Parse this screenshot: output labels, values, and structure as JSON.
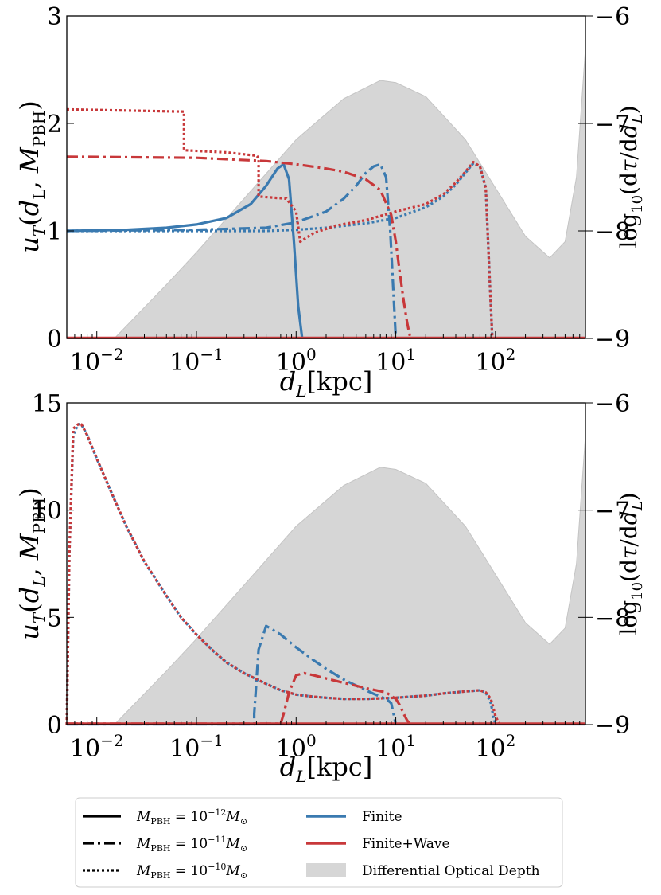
{
  "chart_data": [
    {
      "type": "line",
      "panel": "top",
      "xlabel": "d_L[kpc]",
      "ylabel": "u_T(d_L, M_PBH)",
      "ylabel_right": "log10(dτ/dd_L)",
      "x_scale": "log",
      "xlim": [
        0.005,
        800
      ],
      "ylim": [
        0,
        3
      ],
      "ylim_right": [
        -9,
        -6
      ],
      "x_ticks": [
        {
          "value": 0.01,
          "base": "10",
          "exp": "−2"
        },
        {
          "value": 0.1,
          "base": "10",
          "exp": "−1"
        },
        {
          "value": 1,
          "base": "10",
          "exp": "0"
        },
        {
          "value": 10,
          "base": "10",
          "exp": "1"
        },
        {
          "value": 100,
          "base": "10",
          "exp": "2"
        }
      ],
      "y_ticks": [
        0,
        1,
        2,
        3
      ],
      "y_ticks_right": [
        -9,
        -8,
        -7,
        -6
      ],
      "optical_depth": {
        "x": [
          0.005,
          0.015,
          0.05,
          0.1,
          0.3,
          1,
          3,
          7,
          10,
          20,
          50,
          100,
          200,
          350,
          500,
          650,
          800
        ],
        "y": [
          -9.0,
          -9.0,
          -8.5,
          -8.2,
          -7.7,
          -7.15,
          -6.77,
          -6.6,
          -6.62,
          -6.75,
          -7.15,
          -7.6,
          -8.05,
          -8.25,
          -8.1,
          -7.5,
          -6.3
        ]
      },
      "series": [
        {
          "name": "finite-1e-12",
          "color": "#3a7ab0",
          "style": "solid",
          "x": [
            0.005,
            0.02,
            0.05,
            0.1,
            0.2,
            0.35,
            0.5,
            0.65,
            0.75,
            0.85,
            0.95,
            1.05,
            1.15
          ],
          "y": [
            1.0,
            1.01,
            1.03,
            1.06,
            1.12,
            1.25,
            1.42,
            1.58,
            1.62,
            1.48,
            0.9,
            0.3,
            0
          ]
        },
        {
          "name": "finite-1e-11",
          "color": "#3a7ab0",
          "style": "dashdot",
          "x": [
            0.005,
            0.1,
            0.5,
            1,
            2,
            3,
            4,
            5,
            6,
            7,
            8,
            8.8,
            9.5,
            10
          ],
          "y": [
            1.0,
            1.01,
            1.03,
            1.08,
            1.18,
            1.3,
            1.42,
            1.54,
            1.6,
            1.62,
            1.5,
            1.0,
            0.4,
            0
          ]
        },
        {
          "name": "finite-1e-10",
          "color": "#3a7ab0",
          "style": "dotted",
          "x": [
            0.005,
            0.5,
            1,
            2,
            5,
            10,
            20,
            30,
            40,
            50,
            60,
            70,
            80,
            88,
            93
          ],
          "y": [
            1.0,
            1.0,
            1.01,
            1.03,
            1.07,
            1.12,
            1.22,
            1.32,
            1.43,
            1.54,
            1.63,
            1.6,
            1.4,
            0.5,
            0
          ]
        },
        {
          "name": "finite-wave-1e-12",
          "color": "#c8383a",
          "style": "solid",
          "x": [
            0.005,
            800
          ],
          "y": [
            0.005,
            0.005
          ]
        },
        {
          "name": "finite-wave-1e-11",
          "color": "#c8383a",
          "style": "dashdot",
          "x": [
            0.005,
            0.1,
            0.5,
            1,
            2,
            3,
            5,
            7,
            9,
            10,
            11,
            12,
            13,
            14
          ],
          "y": [
            1.69,
            1.68,
            1.65,
            1.62,
            1.58,
            1.55,
            1.48,
            1.38,
            1.15,
            0.9,
            0.6,
            0.35,
            0.15,
            0
          ]
        },
        {
          "name": "finite-wave-1e-10",
          "color": "#c8383a",
          "style": "dotted",
          "x": [
            0.005,
            0.075,
            0.075,
            0.2,
            0.4,
            0.42,
            0.42,
            0.8,
            1.0,
            1.1,
            1.5,
            2.5,
            5,
            10,
            20,
            30,
            40,
            50,
            60,
            70,
            80,
            88,
            93
          ],
          "y": [
            2.13,
            2.11,
            1.75,
            1.73,
            1.7,
            1.68,
            1.32,
            1.3,
            1.18,
            0.9,
            0.98,
            1.05,
            1.1,
            1.18,
            1.25,
            1.34,
            1.45,
            1.55,
            1.64,
            1.6,
            1.4,
            0.5,
            0
          ]
        }
      ]
    },
    {
      "type": "line",
      "panel": "bottom",
      "xlabel": "d_L[kpc]",
      "ylabel": "u_T(d_L, M_PBH)",
      "ylabel_right": "log10(dτ/dd_L)",
      "x_scale": "log",
      "xlim": [
        0.005,
        800
      ],
      "ylim": [
        0,
        15
      ],
      "ylim_right": [
        -9,
        -6
      ],
      "x_ticks": [
        {
          "value": 0.01,
          "base": "10",
          "exp": "−2"
        },
        {
          "value": 0.1,
          "base": "10",
          "exp": "−1"
        },
        {
          "value": 1,
          "base": "10",
          "exp": "0"
        },
        {
          "value": 10,
          "base": "10",
          "exp": "1"
        },
        {
          "value": 100,
          "base": "10",
          "exp": "2"
        }
      ],
      "y_ticks": [
        0,
        5,
        10,
        15
      ],
      "y_ticks_right": [
        -9,
        -8,
        -7,
        -6
      ],
      "optical_depth": {
        "x": [
          0.005,
          0.015,
          0.05,
          0.1,
          0.3,
          1,
          3,
          7,
          10,
          20,
          50,
          100,
          200,
          350,
          500,
          650,
          800
        ],
        "y": [
          -9.0,
          -9.0,
          -8.5,
          -8.2,
          -7.7,
          -7.15,
          -6.77,
          -6.6,
          -6.62,
          -6.75,
          -7.15,
          -7.6,
          -8.05,
          -8.25,
          -8.1,
          -7.5,
          -6.3
        ]
      },
      "series": [
        {
          "name": "finite-1e-12",
          "color": "#3a7ab0",
          "style": "solid",
          "x": [
            0.005,
            800
          ],
          "y": [
            0.02,
            0.02
          ]
        },
        {
          "name": "finite-1e-11",
          "color": "#3a7ab0",
          "style": "dashdot",
          "x": [
            0.005,
            0.38,
            0.38,
            0.42,
            0.5,
            0.7,
            1,
            1.5,
            2,
            3,
            5,
            7,
            8,
            9,
            9.5,
            10
          ],
          "y": [
            0.02,
            0.02,
            0.5,
            3.5,
            4.6,
            4.2,
            3.6,
            3.0,
            2.6,
            2.1,
            1.6,
            1.3,
            1.2,
            1.0,
            0.5,
            0
          ]
        },
        {
          "name": "finite-1e-10",
          "color": "#3a7ab0",
          "style": "dotted",
          "x": [
            0.005,
            0.0053,
            0.0058,
            0.0065,
            0.007,
            0.008,
            0.01,
            0.015,
            0.02,
            0.03,
            0.05,
            0.07,
            0.1,
            0.15,
            0.2,
            0.3,
            0.5,
            0.7,
            1,
            1.5,
            2,
            3,
            5,
            10,
            20,
            30,
            50,
            70,
            80,
            90,
            95,
            100
          ],
          "y": [
            0,
            8,
            13.5,
            14.0,
            14.0,
            13.5,
            12.4,
            10.5,
            9.2,
            7.6,
            6.0,
            5.0,
            4.2,
            3.4,
            2.9,
            2.4,
            1.9,
            1.6,
            1.4,
            1.3,
            1.25,
            1.2,
            1.2,
            1.25,
            1.35,
            1.45,
            1.55,
            1.6,
            1.5,
            1.0,
            0.4,
            0
          ]
        },
        {
          "name": "finite-wave-1e-12",
          "color": "#c8383a",
          "style": "solid",
          "x": [
            0.005,
            800
          ],
          "y": [
            0.04,
            0.04
          ]
        },
        {
          "name": "finite-wave-1e-11",
          "color": "#c8383a",
          "style": "dashdot",
          "x": [
            0.005,
            0.7,
            0.75,
            0.85,
            1.0,
            1.2,
            1.5,
            2,
            3,
            5,
            8,
            10,
            11,
            12,
            13,
            14
          ],
          "y": [
            0.04,
            0.04,
            0.5,
            1.5,
            2.3,
            2.4,
            2.3,
            2.15,
            1.95,
            1.7,
            1.5,
            1.2,
            0.9,
            0.5,
            0.2,
            0
          ]
        },
        {
          "name": "finite-wave-1e-10",
          "color": "#c8383a",
          "style": "dotted",
          "x": [
            0.005,
            0.0053,
            0.0058,
            0.0065,
            0.007,
            0.008,
            0.01,
            0.015,
            0.02,
            0.03,
            0.05,
            0.07,
            0.1,
            0.15,
            0.2,
            0.3,
            0.5,
            0.7,
            1,
            1.5,
            2,
            3,
            5,
            10,
            20,
            30,
            50,
            70,
            80,
            90,
            100,
            110
          ],
          "y": [
            0,
            8,
            13.8,
            14.0,
            14.0,
            13.5,
            12.4,
            10.5,
            9.2,
            7.6,
            6.0,
            5.0,
            4.2,
            3.4,
            2.9,
            2.4,
            1.9,
            1.6,
            1.4,
            1.3,
            1.25,
            1.2,
            1.2,
            1.25,
            1.35,
            1.45,
            1.55,
            1.6,
            1.5,
            1.2,
            0.4,
            0
          ]
        }
      ]
    }
  ],
  "legend": {
    "line_styles": [
      {
        "style": "solid",
        "text": "M",
        "sub": "PBH",
        "eq": " = 10",
        "exp": "−12",
        "unit": "M",
        "unit_sub": "⊙"
      },
      {
        "style": "dashdot",
        "text": "M",
        "sub": "PBH",
        "eq": " = 10",
        "exp": "−11",
        "unit": "M",
        "unit_sub": "⊙"
      },
      {
        "style": "dotted",
        "text": "M",
        "sub": "PBH",
        "eq": " = 10",
        "exp": "−10",
        "unit": "M",
        "unit_sub": "⊙"
      }
    ],
    "colors": [
      {
        "label": "Finite",
        "color": "#3a7ab0"
      },
      {
        "label": "Finite+Wave",
        "color": "#c8383a"
      }
    ],
    "fill": {
      "label": "Differential Optical Depth",
      "color": "#d6d6d6"
    }
  }
}
